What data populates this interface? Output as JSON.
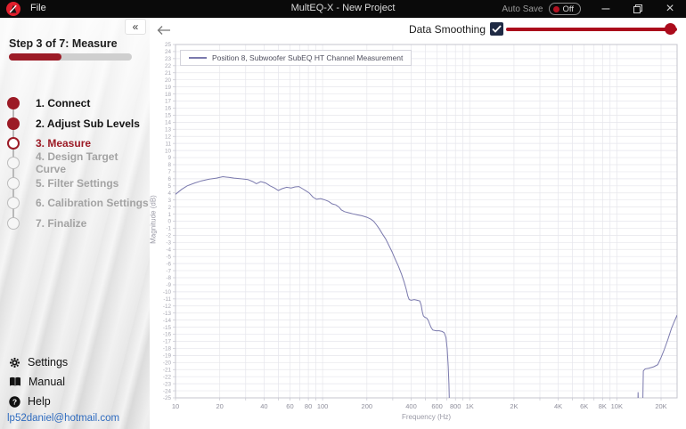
{
  "titlebar": {
    "app_menu": "File",
    "title": "MultEQ-X - New Project",
    "autosave_label": "Auto Save",
    "autosave_state": "Off",
    "brand_color": "#e0202d",
    "minimize_glyph": "–",
    "close_glyph": "×"
  },
  "sidebar": {
    "collapse_glyph": "«",
    "step_header": "Step 3 of 7: Measure",
    "progress_percent": 43,
    "steps": [
      {
        "label": "1. Connect",
        "state": "done"
      },
      {
        "label": "2. Adjust Sub Levels",
        "state": "done"
      },
      {
        "label": "3. Measure",
        "state": "active"
      },
      {
        "label": "4. Design Target Curve",
        "state": "pending"
      },
      {
        "label": "5. Filter Settings",
        "state": "pending"
      },
      {
        "label": "6. Calibration Settings",
        "state": "pending"
      },
      {
        "label": "7. Finalize",
        "state": "pending"
      }
    ],
    "footer": {
      "settings": "Settings",
      "manual": "Manual",
      "help": "Help",
      "account_email": "lp52daniel@hotmail.com"
    }
  },
  "toolbar": {
    "smoothing_label": "Data Smoothing",
    "smoothing_checked": true,
    "slider_value_percent": 97,
    "accent_color": "#ab0b1c"
  },
  "chart_data": {
    "type": "line",
    "legend": [
      "Position 8, Subwoofer SubEQ HT Channel Measurement"
    ],
    "legend_position": "top-left",
    "xlabel": "Frequency (Hz)",
    "ylabel": "Magnitude (dB)",
    "x_scale": "log",
    "xlim": [
      10,
      25700
    ],
    "ylim": [
      -25,
      25
    ],
    "y_tick_step": 1,
    "grid": true,
    "x_ticks": [
      {
        "v": 10,
        "label": "10"
      },
      {
        "v": 20,
        "label": "20"
      },
      {
        "v": 40,
        "label": "40"
      },
      {
        "v": 60,
        "label": "60"
      },
      {
        "v": 80,
        "label": "80"
      },
      {
        "v": 100,
        "label": "100"
      },
      {
        "v": 200,
        "label": "200"
      },
      {
        "v": 400,
        "label": "400"
      },
      {
        "v": 600,
        "label": "600"
      },
      {
        "v": 800,
        "label": "800"
      },
      {
        "v": 1000,
        "label": "1K"
      },
      {
        "v": 2000,
        "label": "2K"
      },
      {
        "v": 4000,
        "label": "4K"
      },
      {
        "v": 6000,
        "label": "6K"
      },
      {
        "v": 8000,
        "label": "8K"
      },
      {
        "v": 10000,
        "label": "10K"
      },
      {
        "v": 20000,
        "label": "20K"
      }
    ],
    "series": [
      {
        "name": "Position 8, Subwoofer SubEQ HT Channel Measurement",
        "color": "#7a79ad",
        "segments": [
          [
            [
              10,
              3.8
            ],
            [
              11,
              4.5
            ],
            [
              12,
              5.0
            ],
            [
              13.5,
              5.4
            ],
            [
              15,
              5.7
            ],
            [
              17,
              5.95
            ],
            [
              19,
              6.1
            ],
            [
              21,
              6.3
            ],
            [
              23,
              6.2
            ],
            [
              25,
              6.1
            ],
            [
              28,
              6.0
            ],
            [
              31,
              5.9
            ],
            [
              33.5,
              5.6
            ],
            [
              35.5,
              5.3
            ],
            [
              38,
              5.6
            ],
            [
              41,
              5.4
            ],
            [
              44,
              5.0
            ],
            [
              47,
              4.7
            ],
            [
              50,
              4.35
            ],
            [
              53,
              4.6
            ],
            [
              57,
              4.8
            ],
            [
              61,
              4.7
            ],
            [
              65,
              4.85
            ],
            [
              69,
              4.9
            ],
            [
              73,
              4.6
            ],
            [
              77,
              4.3
            ],
            [
              81,
              4.0
            ],
            [
              86,
              3.4
            ],
            [
              91,
              3.1
            ],
            [
              97,
              3.2
            ],
            [
              104,
              3.0
            ],
            [
              110,
              2.8
            ],
            [
              116,
              2.45
            ],
            [
              123,
              2.3
            ],
            [
              129,
              2.0
            ],
            [
              134,
              1.6
            ],
            [
              141,
              1.35
            ],
            [
              150,
              1.2
            ],
            [
              160,
              1.05
            ],
            [
              172,
              0.9
            ],
            [
              186,
              0.75
            ],
            [
              200,
              0.55
            ],
            [
              212,
              0.3
            ],
            [
              222,
              0.0
            ],
            [
              232,
              -0.5
            ],
            [
              243,
              -1.1
            ],
            [
              255,
              -1.8
            ],
            [
              268,
              -2.5
            ],
            [
              282,
              -3.4
            ],
            [
              296,
              -4.3
            ],
            [
              312,
              -5.4
            ],
            [
              328,
              -6.4
            ],
            [
              344,
              -7.5
            ],
            [
              358,
              -8.6
            ],
            [
              370,
              -9.6
            ],
            [
              380,
              -10.6
            ],
            [
              388,
              -11.1
            ],
            [
              400,
              -11.2
            ],
            [
              420,
              -11.1
            ],
            [
              440,
              -11.2
            ],
            [
              458,
              -11.3
            ],
            [
              468,
              -11.9
            ],
            [
              476,
              -12.8
            ],
            [
              484,
              -13.4
            ],
            [
              495,
              -13.6
            ],
            [
              510,
              -13.7
            ],
            [
              522,
              -14.0
            ],
            [
              535,
              -14.6
            ],
            [
              548,
              -15.1
            ],
            [
              562,
              -15.4
            ],
            [
              590,
              -15.5
            ],
            [
              620,
              -15.5
            ],
            [
              650,
              -15.6
            ],
            [
              672,
              -15.8
            ],
            [
              690,
              -16.5
            ],
            [
              703,
              -18.0
            ],
            [
              714,
              -20.5
            ],
            [
              722,
              -23.0
            ],
            [
              730,
              -26.5
            ]
          ],
          [
            [
              13900,
              -26.5
            ],
            [
              13950,
              -24.2
            ],
            [
              14050,
              -26.5
            ]
          ],
          [
            [
              15000,
              -26.5
            ],
            [
              15150,
              -21.2
            ],
            [
              15600,
              -20.9
            ],
            [
              16500,
              -20.8
            ],
            [
              17800,
              -20.6
            ],
            [
              19000,
              -20.3
            ],
            [
              20000,
              -19.3
            ],
            [
              21000,
              -18.2
            ],
            [
              22200,
              -16.8
            ],
            [
              23500,
              -15.2
            ],
            [
              24600,
              -14.2
            ],
            [
              25700,
              -13.3
            ]
          ]
        ]
      }
    ]
  }
}
